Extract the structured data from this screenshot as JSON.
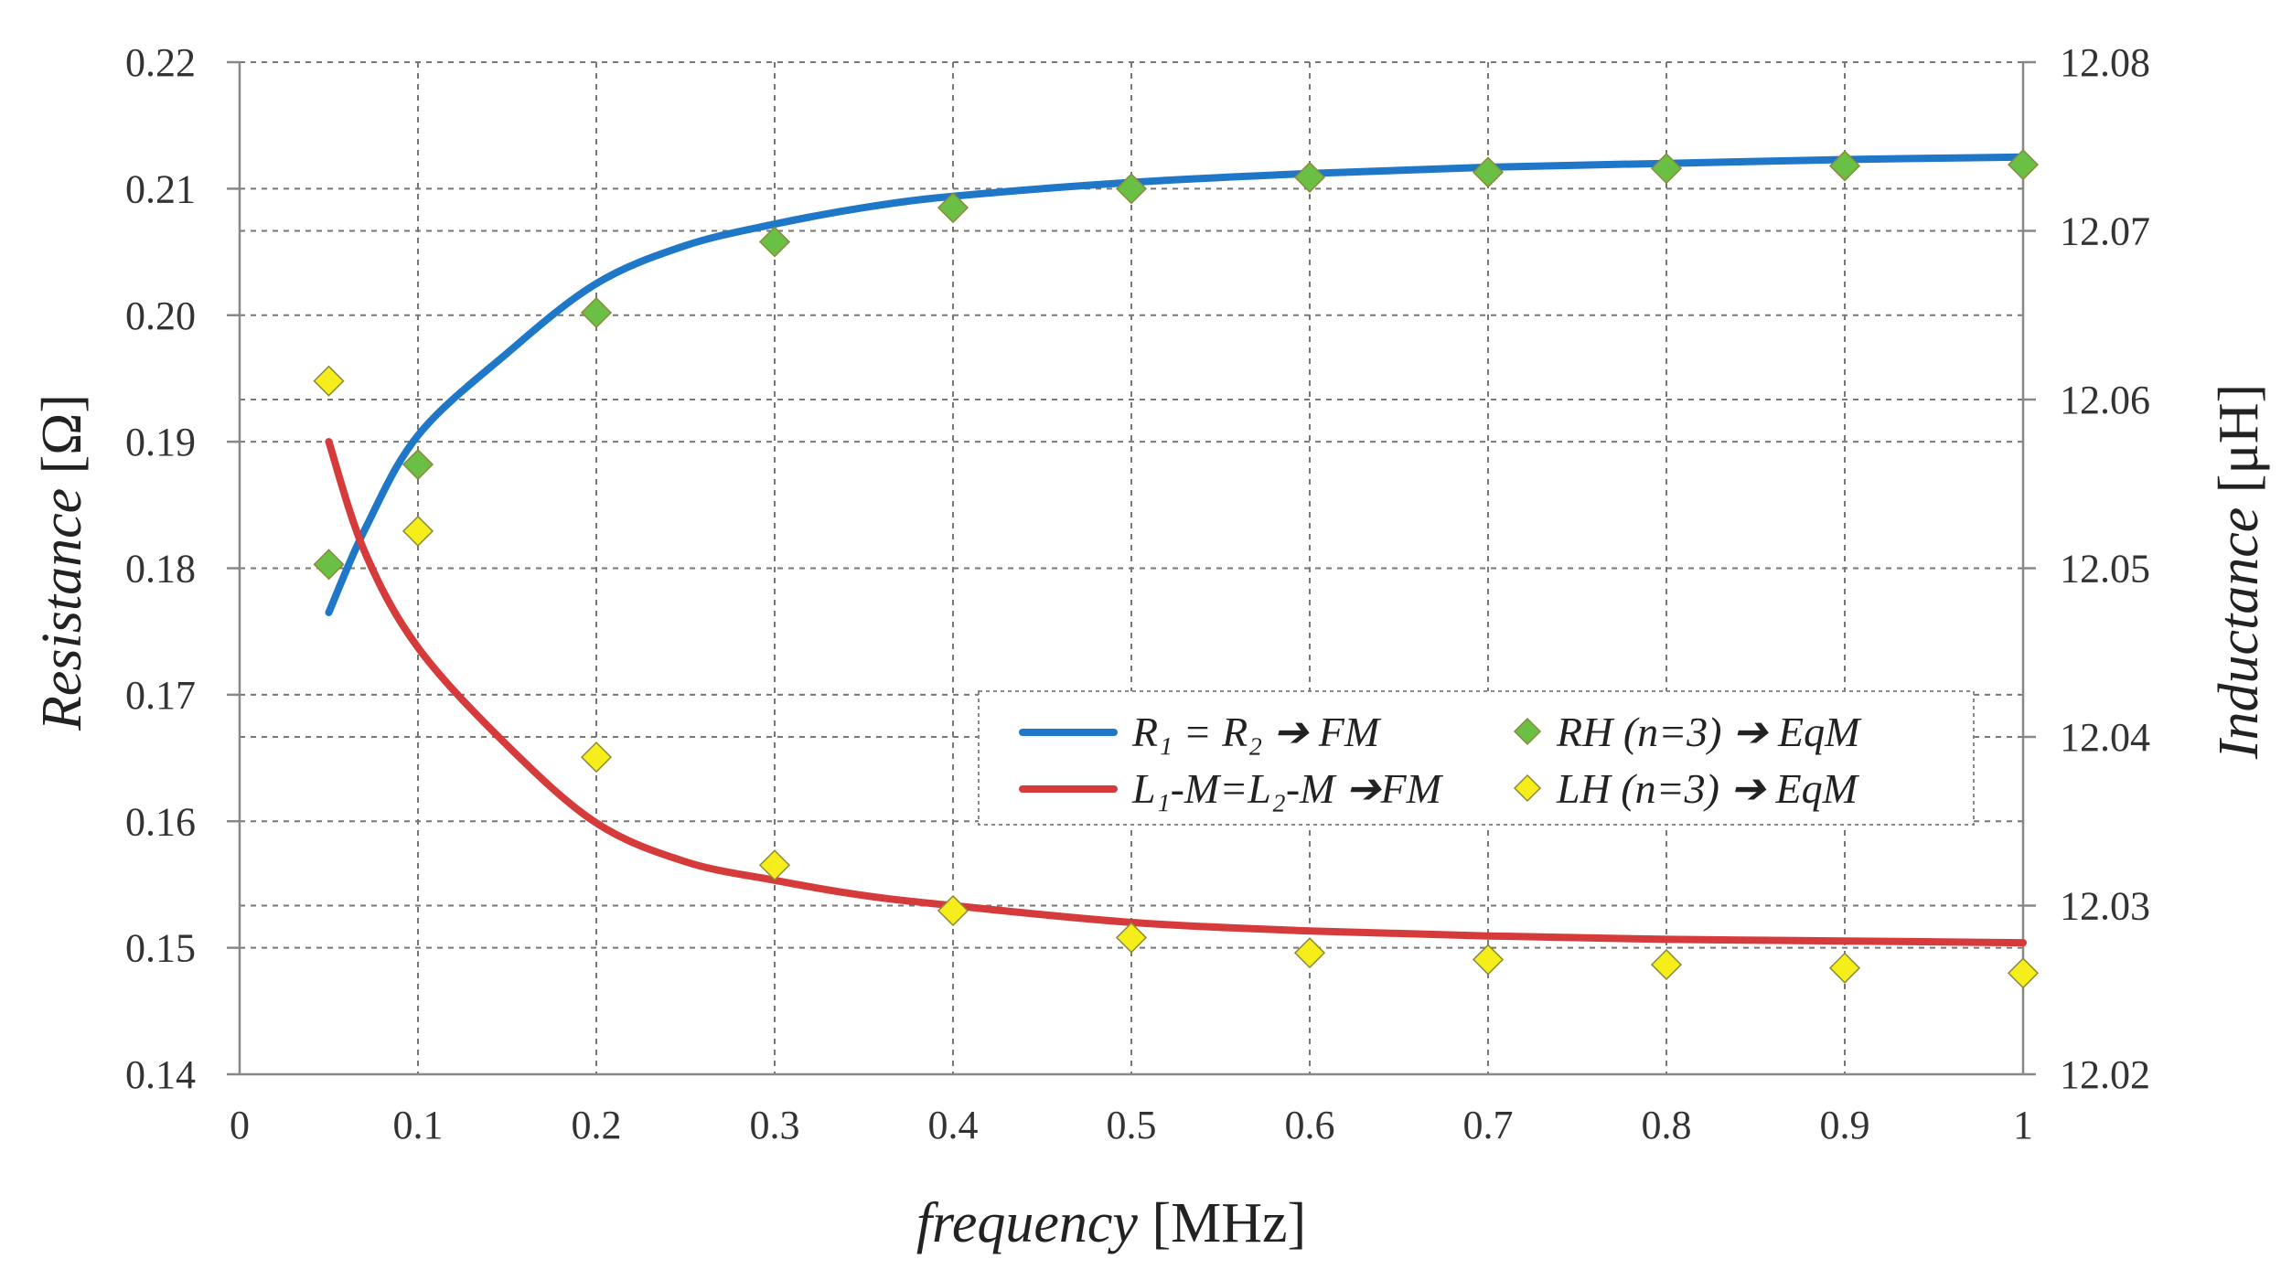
{
  "chart_data": {
    "type": "line",
    "xlabel": {
      "italic": "frequency",
      "unit": "[MHz]"
    },
    "ylabel_left": {
      "italic": "Resistance",
      "unit": "[Ω]"
    },
    "ylabel_right": {
      "italic": "Inductance",
      "unit": "[μH]"
    },
    "xlim": [
      0,
      1
    ],
    "ylim_left": [
      0.14,
      0.22
    ],
    "ylim_right": [
      12.02,
      12.08
    ],
    "x_ticks": [
      "0",
      "0.1",
      "0.2",
      "0.3",
      "0.4",
      "0.5",
      "0.6",
      "0.7",
      "0.8",
      "0.9",
      "1"
    ],
    "y_ticks_left": [
      "0.14",
      "0.15",
      "0.16",
      "0.17",
      "0.18",
      "0.19",
      "0.20",
      "0.21",
      "0.22"
    ],
    "y_ticks_right": [
      "12.02",
      "12.03",
      "12.04",
      "12.05",
      "12.06",
      "12.07",
      "12.08"
    ],
    "grid": true,
    "legend_position": "center-right",
    "series": [
      {
        "name": "R1 = R2 → FM",
        "kind": "line",
        "axis": "left",
        "color": "#1f77c8",
        "x": [
          0.05,
          0.07,
          0.1,
          0.15,
          0.2,
          0.25,
          0.3,
          0.35,
          0.4,
          0.5,
          0.6,
          0.7,
          0.8,
          0.9,
          1.0
        ],
        "y": [
          0.1765,
          0.183,
          0.1905,
          0.197,
          0.2025,
          0.2055,
          0.2072,
          0.2085,
          0.2094,
          0.2105,
          0.2112,
          0.2117,
          0.212,
          0.2123,
          0.2125
        ]
      },
      {
        "name": "L1-M=L2-M → FM",
        "kind": "line",
        "axis": "right",
        "color": "#d63b3b",
        "x": [
          0.05,
          0.07,
          0.1,
          0.15,
          0.2,
          0.25,
          0.3,
          0.35,
          0.4,
          0.5,
          0.6,
          0.7,
          0.8,
          0.9,
          1.0
        ],
        "y": [
          12.0575,
          12.051,
          12.0453,
          12.0395,
          12.0349,
          12.0326,
          12.0315,
          12.0306,
          12.03,
          12.029,
          12.0285,
          12.0282,
          12.028,
          12.0279,
          12.0278
        ]
      },
      {
        "name": "RH (n=3) → EqM",
        "kind": "scatter",
        "axis": "left",
        "color": "#6abf45",
        "x": [
          0.05,
          0.1,
          0.2,
          0.3,
          0.4,
          0.5,
          0.6,
          0.7,
          0.8,
          0.9,
          1.0
        ],
        "y": [
          0.1803,
          0.1882,
          0.2002,
          0.2058,
          0.2085,
          0.21,
          0.2109,
          0.2113,
          0.2116,
          0.2118,
          0.2119
        ]
      },
      {
        "name": "LH (n=3) → EqM",
        "kind": "scatter",
        "axis": "right",
        "color": "#f5ee1a",
        "x": [
          0.05,
          0.1,
          0.2,
          0.3,
          0.4,
          0.5,
          0.6,
          0.7,
          0.8,
          0.9,
          1.0
        ],
        "y": [
          12.0611,
          12.0522,
          12.0388,
          12.0324,
          12.0297,
          12.0281,
          12.0272,
          12.0268,
          12.0265,
          12.0263,
          12.026
        ]
      }
    ],
    "legend": [
      {
        "kind": "line",
        "color": "#1f77c8",
        "label": "R₁ = R₂ ➔ FM"
      },
      {
        "kind": "scatter",
        "color": "#6abf45",
        "label": "RH (n=3) ➔ EqM"
      },
      {
        "kind": "line",
        "color": "#d63b3b",
        "label": "L₁-M=L₂-M ➔FM"
      },
      {
        "kind": "scatter",
        "color": "#f5ee1a",
        "label": "LH (n=3) ➔ EqM"
      }
    ]
  }
}
